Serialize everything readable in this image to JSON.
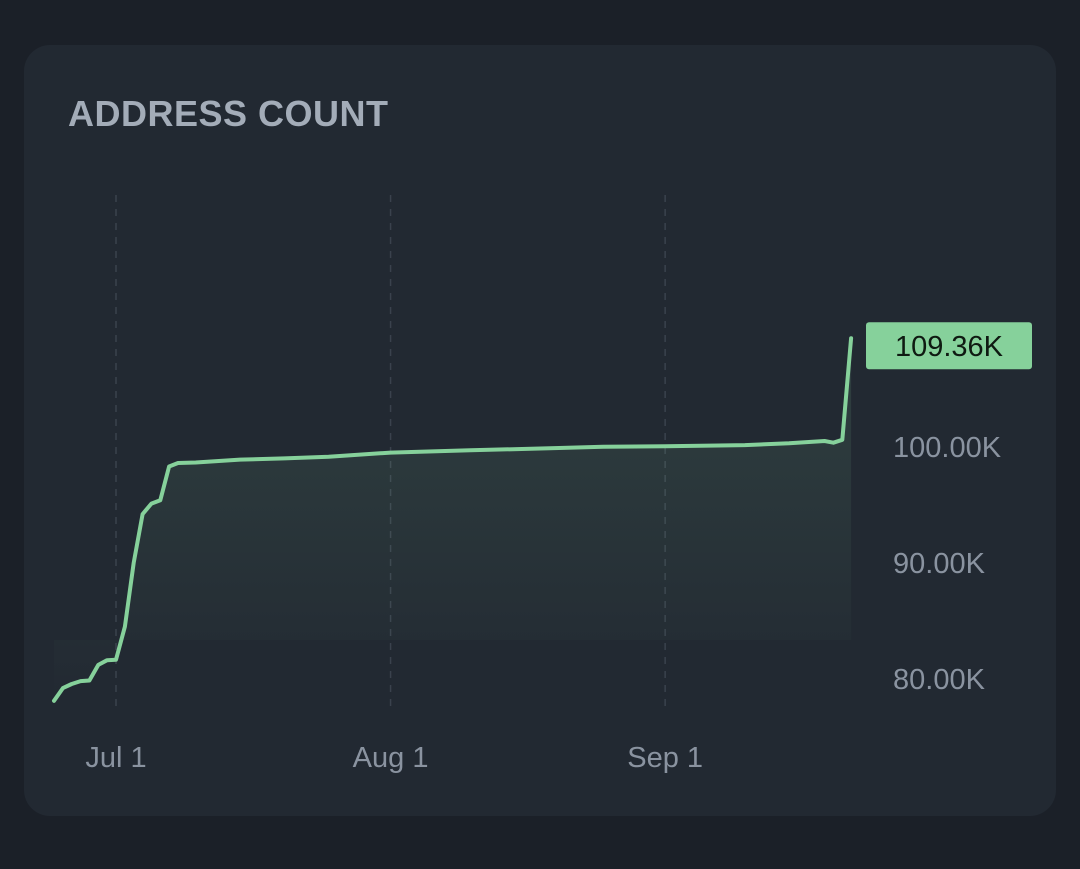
{
  "card": {
    "title": "ADDRESS COUNT"
  },
  "colors": {
    "line": "#86d19b",
    "badge": "#86d19b",
    "background": "#222932",
    "grid": "#3a424d"
  },
  "chart_data": {
    "type": "area",
    "title": "ADDRESS COUNT",
    "xlabel": "",
    "ylabel": "",
    "x_ticks": [
      {
        "label": "Jul 1",
        "date": "2023-07-01"
      },
      {
        "label": "Aug 1",
        "date": "2023-08-01"
      },
      {
        "label": "Sep 1",
        "date": "2023-09-01"
      }
    ],
    "y_ticks": [
      {
        "label": "80.00K",
        "value": 80000
      },
      {
        "label": "90.00K",
        "value": 90000
      },
      {
        "label": "100.00K",
        "value": 100000
      }
    ],
    "xlim": [
      "2023-06-24",
      "2023-09-23"
    ],
    "ylim": [
      78000,
      118000
    ],
    "grid": "vertical dashed at x ticks",
    "last_value_label": "109.36K",
    "series": [
      {
        "points": [
          [
            "2023-06-24",
            78100
          ],
          [
            "2023-06-25",
            79200
          ],
          [
            "2023-06-26",
            79550
          ],
          [
            "2023-06-27",
            79800
          ],
          [
            "2023-06-28",
            79850
          ],
          [
            "2023-06-29",
            81200
          ],
          [
            "2023-06-30",
            81600
          ],
          [
            "2023-07-01",
            81650
          ],
          [
            "2023-07-02",
            84500
          ],
          [
            "2023-07-03",
            90000
          ],
          [
            "2023-07-04",
            94200
          ],
          [
            "2023-07-05",
            95100
          ],
          [
            "2023-07-06",
            95400
          ],
          [
            "2023-07-07",
            98300
          ],
          [
            "2023-07-08",
            98600
          ],
          [
            "2023-07-10",
            98650
          ],
          [
            "2023-07-15",
            98900
          ],
          [
            "2023-07-20",
            99000
          ],
          [
            "2023-07-25",
            99150
          ],
          [
            "2023-08-01",
            99500
          ],
          [
            "2023-08-10",
            99700
          ],
          [
            "2023-08-20",
            99900
          ],
          [
            "2023-08-25",
            100000
          ],
          [
            "2023-09-01",
            100050
          ],
          [
            "2023-09-10",
            100150
          ],
          [
            "2023-09-15",
            100300
          ],
          [
            "2023-09-19",
            100500
          ],
          [
            "2023-09-20",
            100350
          ],
          [
            "2023-09-21",
            100600
          ],
          [
            "2023-09-22",
            109360
          ]
        ]
      }
    ]
  }
}
